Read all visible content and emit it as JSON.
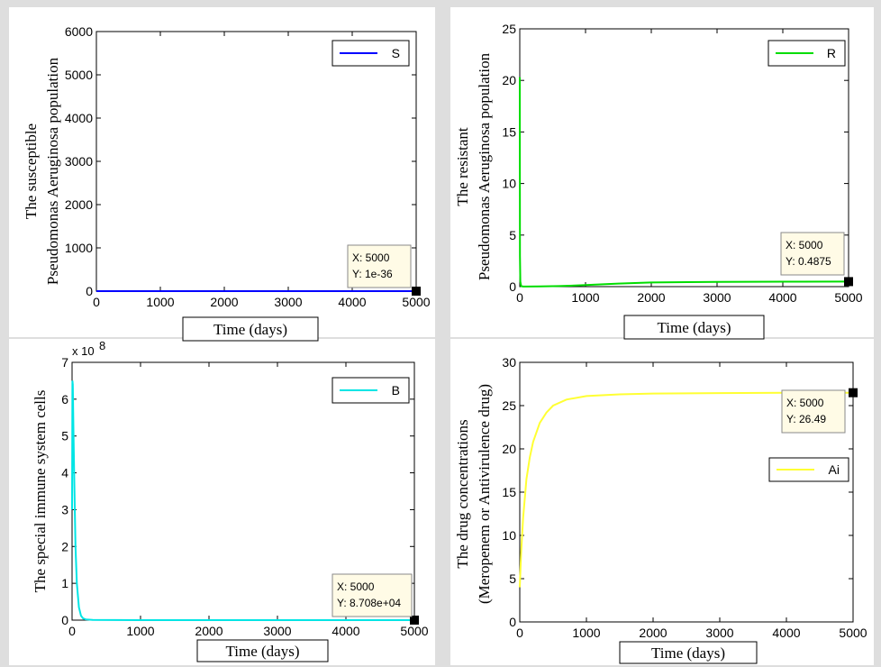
{
  "chart_data": [
    {
      "type": "line",
      "ylabel": [
        "The susceptible",
        "Pseudomonas Aeruginosa population"
      ],
      "xlabel": "Time (days)",
      "xlim": [
        0,
        5000
      ],
      "ylim": [
        0,
        6000
      ],
      "xticks": [
        0,
        1000,
        2000,
        3000,
        4000,
        5000
      ],
      "yticks": [
        0,
        1000,
        2000,
        3000,
        4000,
        5000,
        6000
      ],
      "ytick_labels": [
        "0",
        "1000",
        "2000",
        "3000",
        "4000",
        "5000",
        "6000"
      ],
      "series": [
        {
          "name": "S",
          "color": "#0000ff",
          "x": [
            0,
            5,
            20,
            100,
            1000,
            2000,
            3000,
            4000,
            5000
          ],
          "y": [
            0,
            0,
            0,
            0,
            0,
            0,
            0,
            0,
            0
          ]
        }
      ],
      "legend_position": "top-right",
      "datatip": {
        "x_text": "X: 5000",
        "y_text": "Y: 1e-36",
        "x": 5000,
        "y": 0
      }
    },
    {
      "type": "line",
      "ylabel": [
        "The resistant",
        "Pseudomonas Aeruginosa population"
      ],
      "xlabel": "Time (days)",
      "xlim": [
        0,
        5000
      ],
      "ylim": [
        0,
        25
      ],
      "xticks": [
        0,
        1000,
        2000,
        3000,
        4000,
        5000
      ],
      "yticks": [
        0,
        5,
        10,
        15,
        20,
        25
      ],
      "ytick_labels": [
        "0",
        "5",
        "10",
        "15",
        "20",
        "25"
      ],
      "series": [
        {
          "name": "R",
          "color": "#00dd00",
          "x": [
            0,
            3,
            8,
            20,
            50,
            100,
            300,
            600,
            1000,
            1500,
            2000,
            3000,
            4000,
            5000
          ],
          "y": [
            20.3,
            3,
            0.5,
            0.05,
            0.01,
            0.01,
            0.02,
            0.05,
            0.15,
            0.3,
            0.4,
            0.46,
            0.48,
            0.4875
          ]
        }
      ],
      "legend_position": "top-right",
      "datatip": {
        "x_text": "X: 5000",
        "y_text": "Y: 0.4875",
        "x": 5000,
        "y": 0.4875
      }
    },
    {
      "type": "line",
      "ylabel": [
        "The special immune system cells"
      ],
      "xlabel": "Time (days)",
      "xlim": [
        0,
        5000
      ],
      "ylim": [
        0,
        7
      ],
      "y_exponent": "x 10",
      "y_exponent_power": "8",
      "xticks": [
        0,
        1000,
        2000,
        3000,
        4000,
        5000
      ],
      "yticks": [
        0,
        1,
        2,
        3,
        4,
        5,
        6,
        7
      ],
      "ytick_labels": [
        "0",
        "1",
        "2",
        "3",
        "4",
        "5",
        "6",
        "7"
      ],
      "series": [
        {
          "name": "B",
          "color": "#00e5e5",
          "x": [
            0,
            5,
            10,
            20,
            30,
            50,
            70,
            100,
            130,
            160,
            200,
            300,
            1000,
            2000,
            3000,
            4000,
            5000
          ],
          "y": [
            3.0,
            6.5,
            6.4,
            5.2,
            4.0,
            2.0,
            1.0,
            0.35,
            0.12,
            0.05,
            0.02,
            0.005,
            0.001,
            0.001,
            0.001,
            0.001,
            0.001
          ]
        }
      ],
      "legend_position": "top-right",
      "datatip": {
        "x_text": "X: 5000",
        "y_text": "Y: 8.708e+04",
        "x": 5000,
        "y": 0.00087
      }
    },
    {
      "type": "line",
      "ylabel": [
        "The drug concentrations",
        "(Meropenem or Antivirulence drug)"
      ],
      "xlabel": "Time (days)",
      "xlim": [
        0,
        5000
      ],
      "ylim": [
        0,
        30
      ],
      "xticks": [
        0,
        1000,
        2000,
        3000,
        4000,
        5000
      ],
      "yticks": [
        0,
        5,
        10,
        15,
        20,
        25,
        30
      ],
      "ytick_labels": [
        "0",
        "5",
        "10",
        "15",
        "20",
        "25",
        "30"
      ],
      "series": [
        {
          "name": "Ai",
          "color": "#ffff33",
          "x": [
            0,
            20,
            50,
            100,
            150,
            200,
            300,
            400,
            500,
            700,
            1000,
            1500,
            2000,
            3000,
            4000,
            5000
          ],
          "y": [
            4,
            8,
            12,
            16.5,
            19,
            20.8,
            23,
            24.2,
            25,
            25.7,
            26.1,
            26.3,
            26.4,
            26.45,
            26.48,
            26.49
          ]
        }
      ],
      "legend_position": "middle-right",
      "datatip": {
        "x_text": "X: 5000",
        "y_text": "Y: 26.49",
        "x": 5000,
        "y": 26.49
      }
    }
  ]
}
